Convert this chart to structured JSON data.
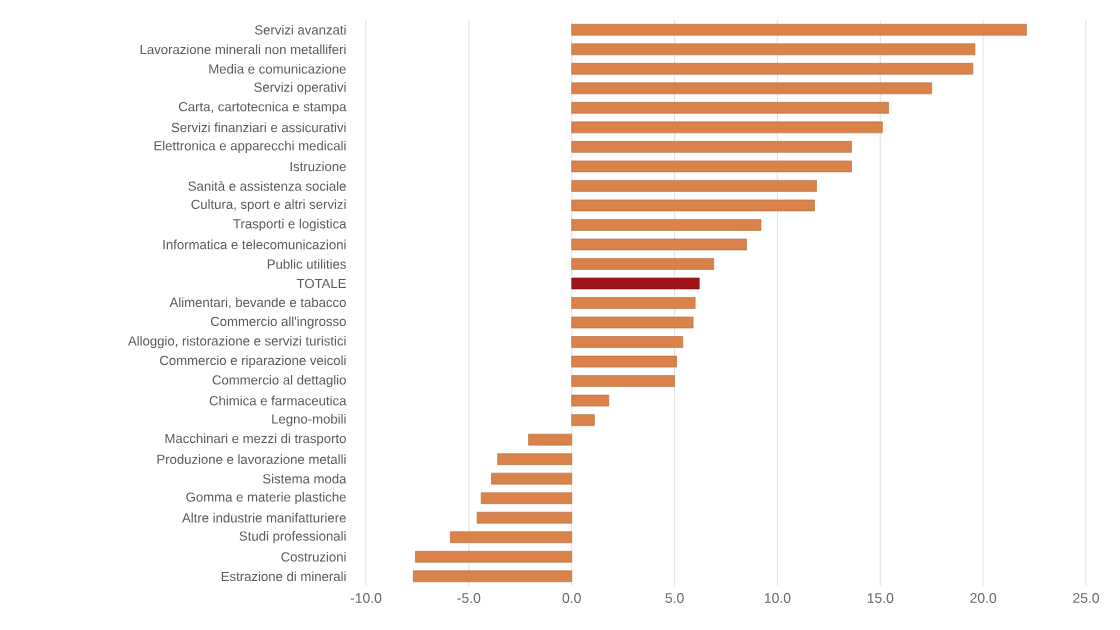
{
  "chart_data": {
    "type": "bar",
    "orientation": "horizontal",
    "categories": [
      "Servizi avanzati",
      "Lavorazione minerali non metalliferi",
      "Media e comunicazione",
      "Servizi operativi",
      "Carta, cartotecnica e stampa",
      "Servizi finanziari e assicurativi",
      "Elettronica e apparecchi medicali",
      "Istruzione",
      "Sanità e assistenza sociale",
      "Cultura, sport e altri servizi",
      "Trasporti e logistica",
      "Informatica e telecomunicazioni",
      "Public utilities",
      "TOTALE",
      "Alimentari, bevande e tabacco",
      "Commercio all'ingrosso",
      "Alloggio, ristorazione e servizi turistici",
      "Commercio e riparazione veicoli",
      "Commercio al dettaglio",
      "Chimica e farmaceutica",
      "Legno-mobili",
      "Macchinari e mezzi di trasporto",
      "Produzione e lavorazione metalli",
      "Sistema moda",
      "Gomma e materie plastiche",
      "Altre industrie manifatturiere",
      "Studi professionali",
      "Costruzioni",
      "Estrazione di minerali"
    ],
    "values": [
      22.1,
      19.6,
      19.5,
      17.5,
      15.4,
      15.1,
      13.6,
      13.6,
      11.9,
      11.8,
      9.2,
      8.5,
      6.9,
      6.2,
      6.0,
      5.9,
      5.4,
      5.1,
      5.0,
      1.8,
      1.1,
      -2.1,
      -3.6,
      -3.9,
      -4.4,
      -4.6,
      -5.9,
      -7.6,
      -7.7
    ],
    "colors": [
      "#d9834b",
      "#d9834b",
      "#d9834b",
      "#d9834b",
      "#d9834b",
      "#d9834b",
      "#d9834b",
      "#d9834b",
      "#d9834b",
      "#d9834b",
      "#d9834b",
      "#d9834b",
      "#d9834b",
      "#a0141a",
      "#d9834b",
      "#d9834b",
      "#d9834b",
      "#d9834b",
      "#d9834b",
      "#d9834b",
      "#d9834b",
      "#d9834b",
      "#d9834b",
      "#d9834b",
      "#d9834b",
      "#d9834b",
      "#d9834b",
      "#d9834b",
      "#d9834b"
    ],
    "xlim": [
      -10,
      25
    ],
    "xticks": [
      {
        "value": -10,
        "label": "-10.0"
      },
      {
        "value": -5,
        "label": "-5.0"
      },
      {
        "value": 0,
        "label": "0.0"
      },
      {
        "value": 5,
        "label": "5.0"
      },
      {
        "value": 10,
        "label": "10.0"
      },
      {
        "value": 15,
        "label": "15.0"
      },
      {
        "value": 20,
        "label": "20.0"
      },
      {
        "value": 25,
        "label": "25.0"
      }
    ],
    "grid": "x"
  }
}
